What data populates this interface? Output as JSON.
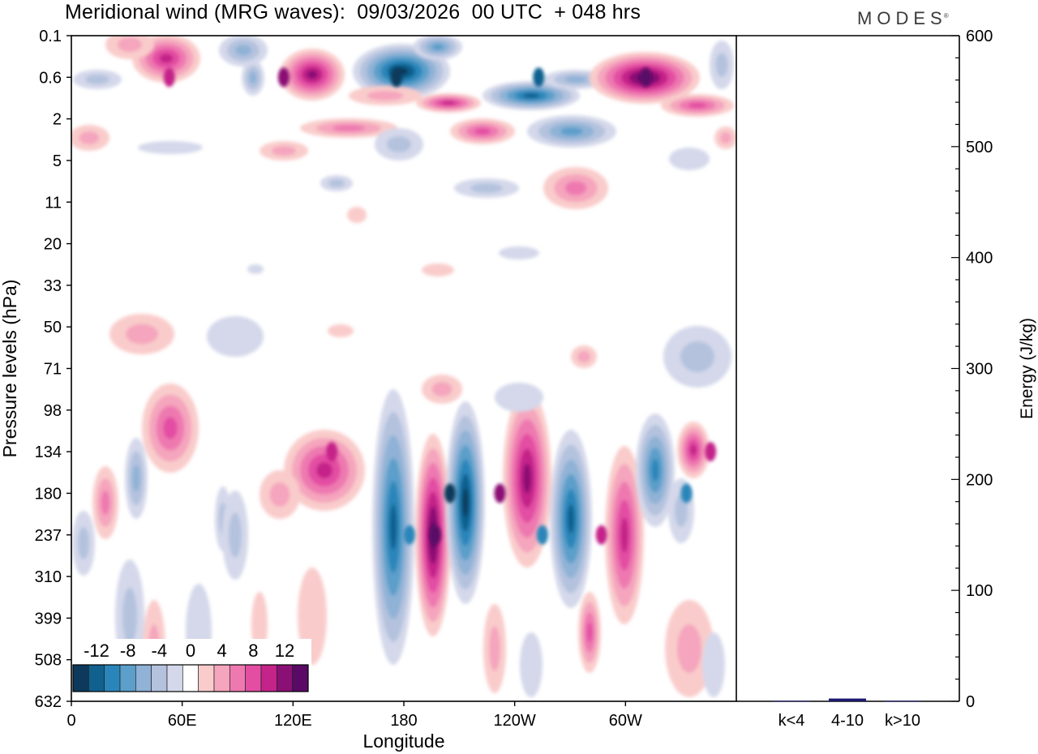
{
  "brand": "MODES",
  "chart_data": [
    {
      "type": "heatmap",
      "title": "Meridional wind (MRG waves):  09/03/2026  00 UTC  + 048 hrs",
      "xlabel": "Longitude",
      "ylabel": "Pressure levels (hPa)",
      "x_ticks": [
        "0",
        "60E",
        "120E",
        "180",
        "120W",
        "60W"
      ],
      "x_tick_values_deg": [
        0,
        60,
        120,
        180,
        240,
        300
      ],
      "x_range_deg": [
        0,
        360
      ],
      "y_ticks": [
        "0.1",
        "0.6",
        "2",
        "5",
        "11",
        "20",
        "33",
        "50",
        "71",
        "98",
        "134",
        "180",
        "237",
        "310",
        "399",
        "508",
        "632"
      ],
      "colorbar": {
        "labels": [
          "-12",
          "-8",
          "-4",
          "0",
          "4",
          "8",
          "12"
        ],
        "levels": [
          -14,
          -12,
          -10,
          -8,
          -6,
          -4,
          -2,
          0,
          2,
          4,
          6,
          8,
          10,
          12,
          14
        ],
        "colors": [
          "#0d3a5c",
          "#11618f",
          "#2a86ba",
          "#5b9fca",
          "#8fb2d6",
          "#b4c2de",
          "#d4d8ea",
          "#ffffff",
          "#f9cccb",
          "#f5a5bd",
          "#ee79b0",
          "#e34ea3",
          "#c42489",
          "#8b1075",
          "#5a0a66"
        ]
      },
      "features": [
        {
          "lon": 205,
          "level": "180",
          "value": -14
        },
        {
          "lon": 197,
          "level": "237",
          "value": 13
        },
        {
          "lon": 183,
          "level": "237",
          "value": -11
        },
        {
          "lon": 232,
          "level": "180",
          "value": 11
        },
        {
          "lon": 255,
          "level": "237",
          "value": -11
        },
        {
          "lon": 287,
          "level": "237",
          "value": 9
        },
        {
          "lon": 333,
          "level": "180",
          "value": -10
        },
        {
          "lon": 346,
          "level": "134",
          "value": 10
        },
        {
          "lon": 141,
          "level": "134",
          "value": 10
        },
        {
          "lon": 115,
          "level": "0.6",
          "value": 12
        },
        {
          "lon": 176,
          "level": "0.6",
          "value": -14
        },
        {
          "lon": 253,
          "level": "1",
          "value": -12
        },
        {
          "lon": 311,
          "level": "0.6",
          "value": 13
        },
        {
          "lon": 53,
          "level": "0.3",
          "value": 10
        }
      ]
    },
    {
      "type": "bar",
      "ylabel": "Energy (J/kg)",
      "categories": [
        "k<4",
        "4-10",
        "k>10"
      ],
      "values": [
        0.5,
        2.5,
        0.5
      ],
      "ylim": [
        0,
        600
      ],
      "y_ticks": [
        0,
        100,
        200,
        300,
        400,
        500,
        600
      ],
      "bar_color": "#1a1a6e"
    }
  ]
}
